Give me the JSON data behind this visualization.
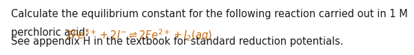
{
  "background_color": "#ffffff",
  "text_color": "#1a1a1a",
  "math_color": "#cc6600",
  "line1": "Calculate the equilibrium constant for the following reaction carried out in 1 M",
  "line2_prefix": "perchloric acid:  ",
  "line2_math": "$2Fe^{3+} + 2I^{-} \\rightleftharpoons 2Fe^{2+} + I_2(aq)$",
  "line3": "See appendix H in the textbook for standard reduction potentials.",
  "font_size": 10.5,
  "fig_width": 5.93,
  "fig_height": 0.79,
  "dpi": 100
}
